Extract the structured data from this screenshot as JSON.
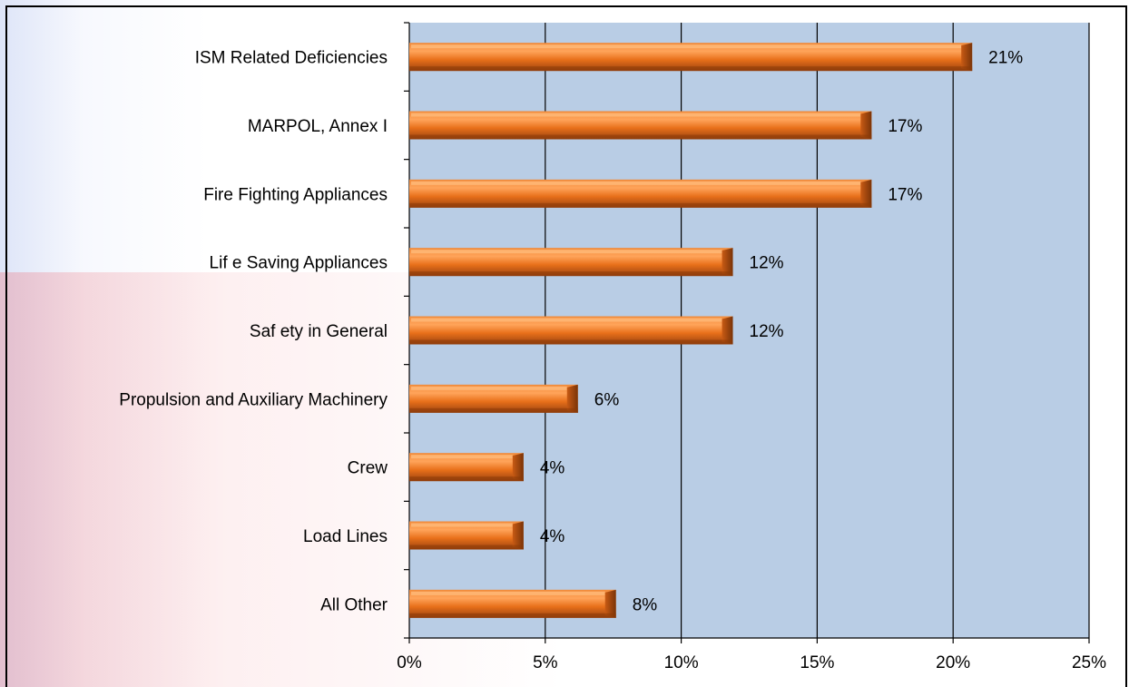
{
  "chart_data": {
    "type": "bar",
    "orientation": "horizontal",
    "categories": [
      "ISM Related  Deficiencies",
      "MARPOL, Annex I",
      "Fire Fighting Appliances",
      "Lif e Saving Appliances",
      "Saf ety in General",
      "Propulsion and Auxiliary Machinery",
      "Crew",
      "Load Lines",
      "All Other"
    ],
    "values": [
      20.7,
      17.0,
      17.0,
      11.9,
      11.9,
      6.2,
      4.2,
      4.2,
      7.6
    ],
    "value_labels": [
      "21%",
      "17%",
      "17%",
      "12%",
      "12%",
      "6%",
      "4%",
      "4%",
      "8%"
    ],
    "x_ticks": [
      "0%",
      "5%",
      "10%",
      "15%",
      "20%",
      "25%"
    ],
    "xlim": [
      0,
      25
    ],
    "grid": "vertical",
    "plot_background": "#B9CDE5",
    "bar_color": "#E8701A",
    "bar_highlight": "#FFA45A",
    "bar_shadow": "#8A3A08",
    "xlabel": "",
    "ylabel": "",
    "title": ""
  }
}
